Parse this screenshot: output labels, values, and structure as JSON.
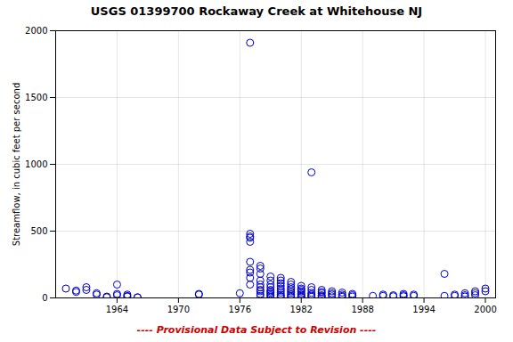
{
  "chart_data": {
    "type": "scatter",
    "title": "USGS 01399700 Rockaway Creek at Whitehouse NJ",
    "ylabel": "Streamflow, in cubic feet per second",
    "xlim": [
      1958,
      2001
    ],
    "ylim": [
      0,
      2000
    ],
    "xticks": [
      1964,
      1970,
      1976,
      1982,
      1988,
      1994,
      2000
    ],
    "yticks": [
      0,
      500,
      1000,
      1500,
      2000
    ],
    "grid": true,
    "marker": "circle",
    "color": "#0000CC",
    "annotations": [
      {
        "text": "---- Provisional Data Subject to Revision ----",
        "color": "#cc0000"
      }
    ],
    "x": [
      1959,
      1960,
      1960,
      1961,
      1961,
      1962,
      1962,
      1963,
      1963,
      1964,
      1964,
      1964,
      1965,
      1965,
      1965,
      1966,
      1966,
      1972,
      1972,
      1976,
      1977,
      1977,
      1977,
      1977,
      1977,
      1977,
      1977,
      1977,
      1977,
      1977,
      1978,
      1978,
      1978,
      1978,
      1978,
      1978,
      1978,
      1978,
      1978,
      1978,
      1979,
      1979,
      1979,
      1979,
      1979,
      1979,
      1979,
      1979,
      1979,
      1979,
      1980,
      1980,
      1980,
      1980,
      1980,
      1980,
      1980,
      1980,
      1980,
      1980,
      1981,
      1981,
      1981,
      1981,
      1981,
      1981,
      1981,
      1981,
      1981,
      1982,
      1982,
      1982,
      1982,
      1982,
      1982,
      1982,
      1982,
      1982,
      1983,
      1983,
      1983,
      1983,
      1983,
      1983,
      1983,
      1984,
      1984,
      1984,
      1984,
      1984,
      1984,
      1985,
      1985,
      1985,
      1985,
      1986,
      1986,
      1986,
      1986,
      1987,
      1987,
      1987,
      1989,
      1990,
      1990,
      1991,
      1991,
      1992,
      1992,
      1992,
      1993,
      1993,
      1996,
      1996,
      1997,
      1997,
      1998,
      1998,
      1998,
      1999,
      1999,
      1999,
      2000,
      2000
    ],
    "values": [
      70,
      55,
      45,
      80,
      60,
      35,
      25,
      10,
      5,
      100,
      30,
      20,
      25,
      15,
      10,
      5,
      3,
      30,
      25,
      35,
      1910,
      420,
      450,
      480,
      460,
      270,
      210,
      190,
      150,
      100,
      240,
      220,
      180,
      130,
      100,
      80,
      60,
      50,
      30,
      15,
      160,
      130,
      100,
      80,
      60,
      50,
      40,
      30,
      20,
      10,
      150,
      130,
      110,
      90,
      70,
      55,
      40,
      25,
      15,
      8,
      120,
      100,
      80,
      65,
      50,
      38,
      25,
      15,
      8,
      90,
      70,
      60,
      48,
      35,
      25,
      15,
      8,
      5,
      940,
      80,
      60,
      38,
      25,
      15,
      8,
      60,
      45,
      35,
      20,
      12,
      5,
      50,
      35,
      25,
      12,
      40,
      25,
      15,
      8,
      30,
      20,
      10,
      15,
      25,
      15,
      20,
      12,
      30,
      20,
      12,
      25,
      15,
      180,
      15,
      25,
      15,
      35,
      20,
      10,
      50,
      35,
      20,
      70,
      50
    ]
  }
}
